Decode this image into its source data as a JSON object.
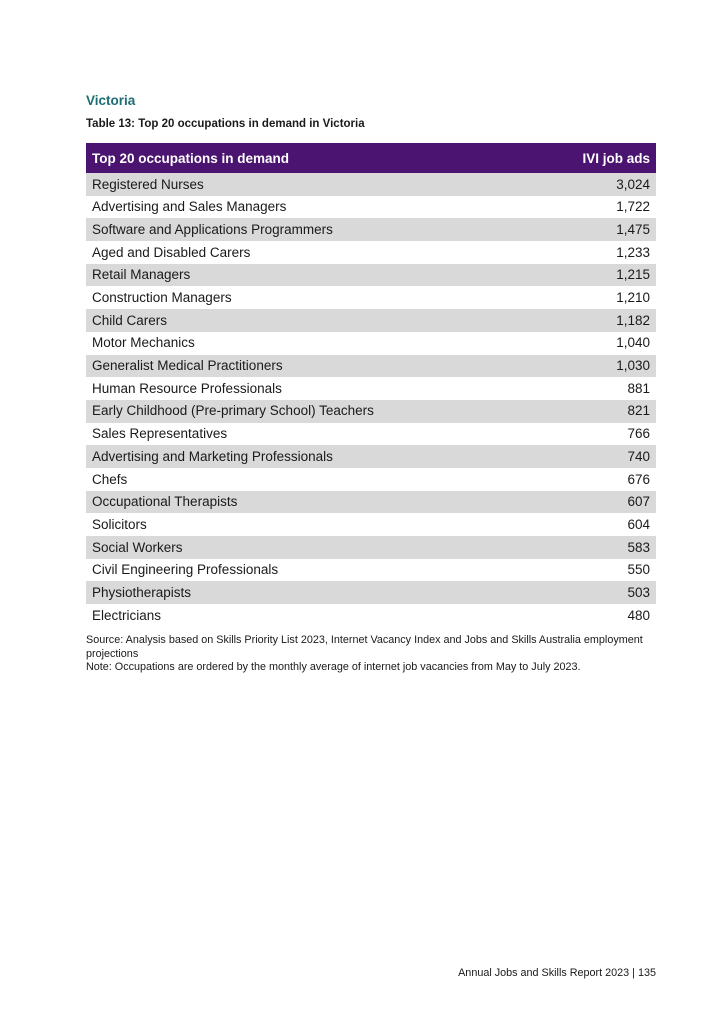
{
  "section_title": "Victoria",
  "caption": "Table 13: Top 20 occupations in demand in Victoria",
  "table": {
    "headers": [
      "Top 20 occupations in demand",
      "IVI job ads"
    ],
    "rows": [
      [
        "Registered Nurses",
        "3,024"
      ],
      [
        "Advertising and Sales Managers",
        "1,722"
      ],
      [
        "Software and Applications Programmers",
        "1,475"
      ],
      [
        "Aged and Disabled Carers",
        "1,233"
      ],
      [
        "Retail Managers",
        "1,215"
      ],
      [
        "Construction Managers",
        "1,210"
      ],
      [
        "Child Carers",
        "1,182"
      ],
      [
        "Motor Mechanics",
        "1,040"
      ],
      [
        "Generalist Medical Practitioners",
        "1,030"
      ],
      [
        "Human Resource Professionals",
        "881"
      ],
      [
        "Early Childhood (Pre-primary School) Teachers",
        "821"
      ],
      [
        "Sales Representatives",
        "766"
      ],
      [
        "Advertising and Marketing Professionals",
        "740"
      ],
      [
        "Chefs",
        "676"
      ],
      [
        "Occupational Therapists",
        "607"
      ],
      [
        "Solicitors",
        "604"
      ],
      [
        "Social Workers",
        "583"
      ],
      [
        "Civil Engineering Professionals",
        "550"
      ],
      [
        "Physiotherapists",
        "503"
      ],
      [
        "Electricians",
        "480"
      ]
    ]
  },
  "source": "Source: Analysis based on Skills Priority List 2023, Internet Vacancy Index and Jobs and Skills Australia employment projections",
  "note": "Note: Occupations are ordered by the monthly average of internet job vacancies from May to July 2023.",
  "footer": "Annual Jobs and Skills Report 2023 | 135",
  "colors": {
    "header": "#4a1470",
    "section": "#1d6e72",
    "stripe": "#d9d9d9"
  }
}
